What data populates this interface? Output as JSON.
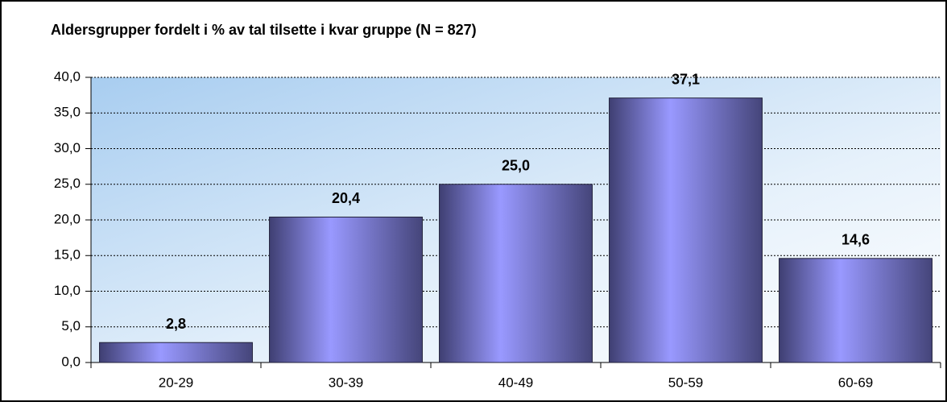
{
  "chart_data": {
    "type": "bar",
    "title": "Aldersgrupper fordelt i % av tal tilsette i kvar gruppe (N = 827)",
    "categories": [
      "20-29",
      "30-39",
      "40-49",
      "50-59",
      "60-69"
    ],
    "values": [
      2.8,
      20.4,
      25.0,
      37.1,
      14.6
    ],
    "value_labels": [
      "2,8",
      "20,4",
      "25,0",
      "37,1",
      "14,6"
    ],
    "color": "#9999ff",
    "ylim": [
      0,
      40
    ],
    "yticks": [
      {
        "value": 0,
        "label": "0,0"
      },
      {
        "value": 5,
        "label": "5,0"
      },
      {
        "value": 10,
        "label": "10,0"
      },
      {
        "value": 15,
        "label": "15,0"
      },
      {
        "value": 20,
        "label": "20,0"
      },
      {
        "value": 25,
        "label": "25,0"
      },
      {
        "value": 30,
        "label": "30,0"
      },
      {
        "value": 35,
        "label": "35,0"
      },
      {
        "value": 40,
        "label": "40,0"
      }
    ],
    "grid": true
  }
}
